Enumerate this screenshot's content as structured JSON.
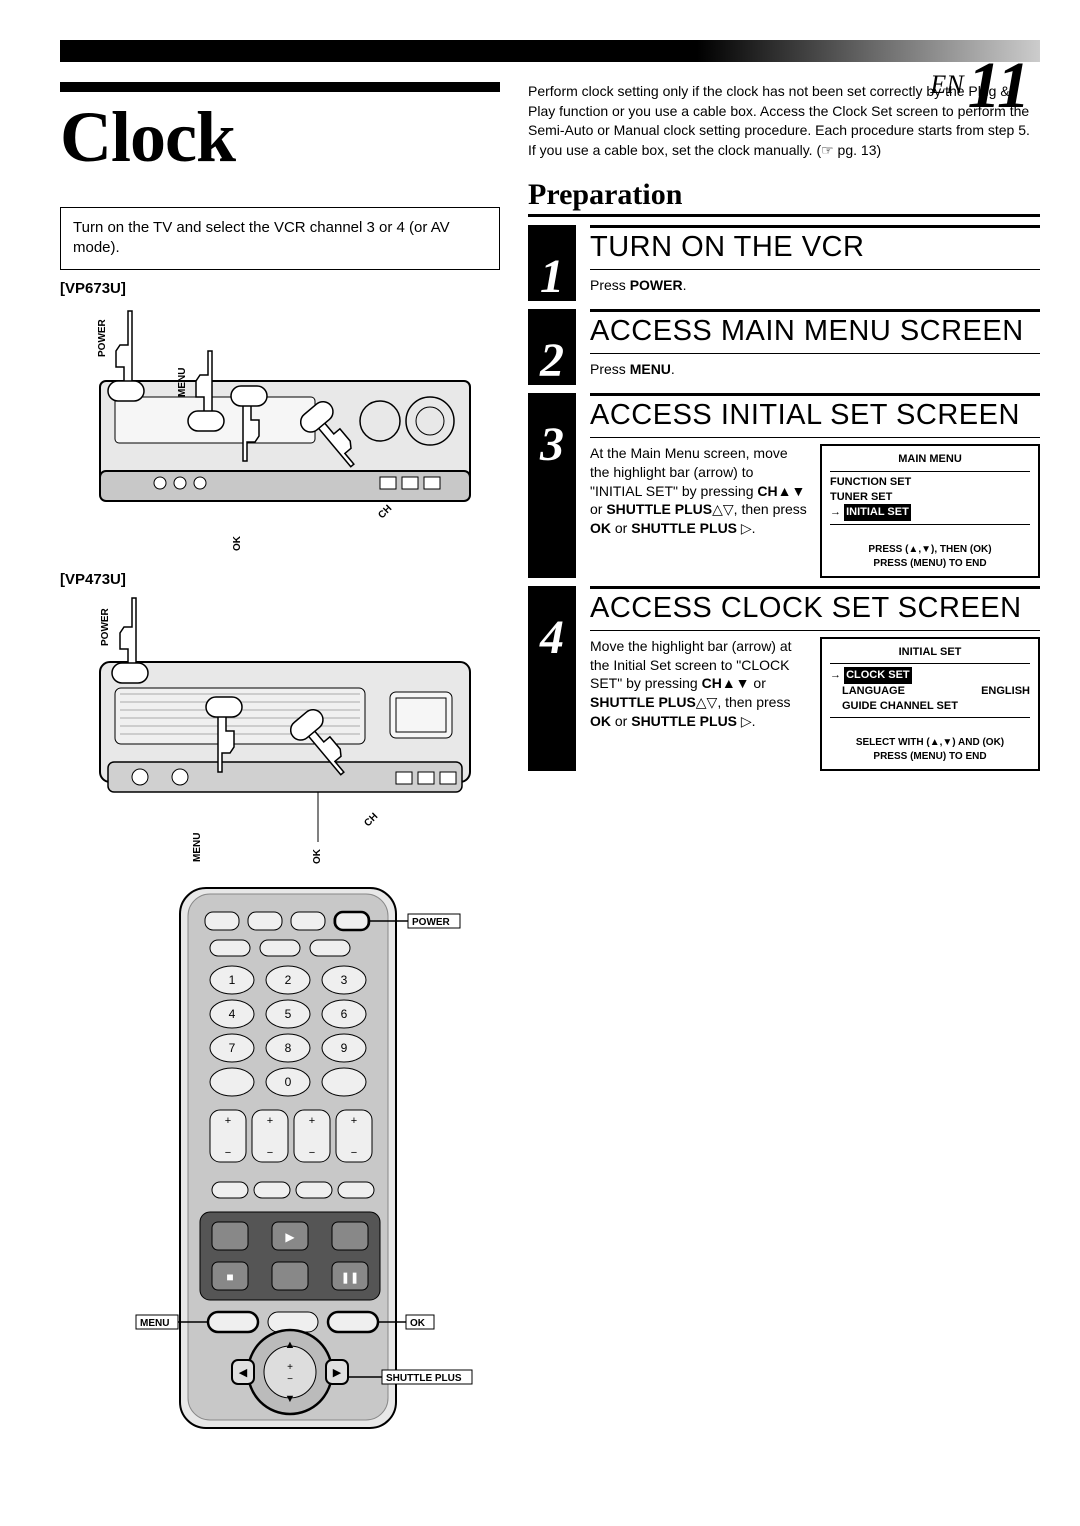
{
  "page": {
    "lang": "EN",
    "number": "11"
  },
  "title": "Clock",
  "left": {
    "intro_box": "Turn on the TV and select the VCR channel 3 or 4 (or AV mode).",
    "model1": "[VP673U]",
    "model2": "[VP473U]",
    "callouts": {
      "power": "POWER",
      "menu": "MENU",
      "ok": "OK",
      "ch": "CH",
      "shuttle": "SHUTTLE PLUS"
    }
  },
  "right": {
    "intro": "Perform clock setting only if the clock has not been set correctly by the Plug & Play function or you use a cable box. Access the Clock Set screen to perform the Semi-Auto or Manual clock setting procedure. Each procedure starts from step 5.\nIf you use a cable box, set the clock manually. (☞ pg. 13)",
    "prep_heading": "Preparation",
    "steps": [
      {
        "n": "1",
        "title": "TURN ON THE VCR",
        "body_html": "Press <b>POWER</b>."
      },
      {
        "n": "2",
        "title": "ACCESS MAIN MENU SCREEN",
        "body_html": "Press <b>MENU</b>."
      },
      {
        "n": "3",
        "title": "ACCESS INITIAL SET SCREEN",
        "body_html": "At the Main Menu screen, move the highlight bar (arrow) to \"INITIAL SET\" by pressing <b>CH</b>▲▼ or <b>SHUTTLE PLUS</b>△▽, then press <b>OK</b> or <b>SHUTTLE PLUS</b> ▷.",
        "osd": {
          "title": "MAIN MENU",
          "items": [
            "FUNCTION SET",
            "TUNER SET"
          ],
          "selected": "INITIAL SET",
          "footer1": "PRESS (▲,▼), THEN (OK)",
          "footer2": "PRESS (MENU) TO END"
        }
      },
      {
        "n": "4",
        "title": "ACCESS CLOCK SET SCREEN",
        "body_html": "Move the highlight bar (arrow) at the Initial Set screen to \"CLOCK SET\" by pressing <b>CH</b>▲▼ or <b>SHUTTLE PLUS</b>△▽, then press <b>OK</b> or <b>SHUTTLE PLUS</b> ▷.",
        "osd": {
          "title": "INITIAL SET",
          "selected": "CLOCK SET",
          "items_after": [
            {
              "l": "LANGUAGE",
              "r": "ENGLISH"
            },
            {
              "l": "GUIDE CHANNEL SET",
              "r": ""
            }
          ],
          "footer1": "SELECT WITH (▲,▼) AND (OK)",
          "footer2": "PRESS (MENU) TO END"
        }
      }
    ]
  },
  "colors": {
    "bg": "#ffffff",
    "ink": "#000000",
    "device_fill": "#e0e0e0",
    "device_dark": "#555555",
    "remote_fill": "#bfbfbf"
  }
}
